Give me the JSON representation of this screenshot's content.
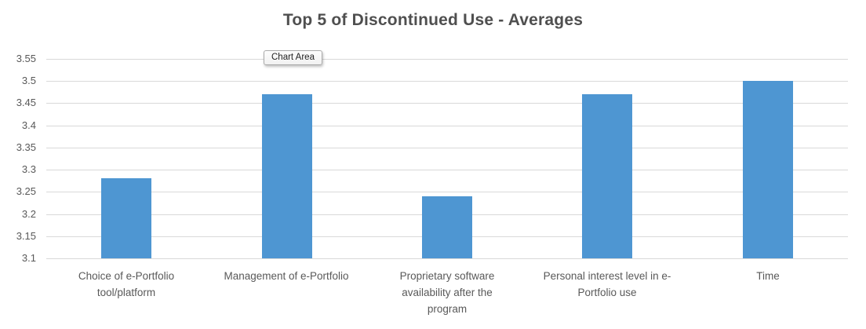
{
  "title": "Top 5 of Discontinued Use - Averages",
  "tooltip": {
    "label": "Chart Area"
  },
  "chart_data": {
    "type": "bar",
    "title": "Top 5 of Discontinued Use - Averages",
    "categories": [
      "Choice of e-Portfolio\ntool/platform",
      "Management of e-Portfolio",
      "Proprietary software\navailability after the\nprogram",
      "Personal interest level in e-\nPortfolio use",
      "Time"
    ],
    "values": [
      3.28,
      3.47,
      3.24,
      3.47,
      3.5
    ],
    "xlabel": "",
    "ylabel": "",
    "ylim": [
      3.1,
      3.55
    ],
    "yticks": [
      3.1,
      3.15,
      3.2,
      3.25,
      3.3,
      3.35,
      3.4,
      3.45,
      3.5,
      3.55
    ],
    "ytick_labels": [
      "3.1",
      "3.15",
      "3.2",
      "3.25",
      "3.3",
      "3.35",
      "3.4",
      "3.45",
      "3.5",
      "3.55"
    ],
    "grid": true,
    "legend_position": "none",
    "bar_color": "#4e96d2"
  },
  "colors": {
    "bar": "#4e96d2",
    "gridline": "#d9d9d9",
    "axis_line": "#c9c9c9",
    "label_text": "#595959",
    "title_text": "#4f4f4f",
    "tooltip_border": "#ababab",
    "tooltip_text": "#1f1f1f"
  }
}
